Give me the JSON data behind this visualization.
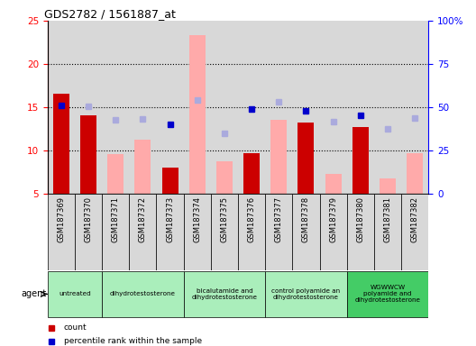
{
  "title": "GDS2782 / 1561887_at",
  "samples": [
    "GSM187369",
    "GSM187370",
    "GSM187371",
    "GSM187372",
    "GSM187373",
    "GSM187374",
    "GSM187375",
    "GSM187376",
    "GSM187377",
    "GSM187378",
    "GSM187379",
    "GSM187380",
    "GSM187381",
    "GSM187382"
  ],
  "count_values": [
    16.6,
    14.1,
    null,
    null,
    8.0,
    null,
    null,
    9.7,
    null,
    13.2,
    null,
    12.7,
    null,
    null
  ],
  "rank_values": [
    15.2,
    null,
    null,
    null,
    13.0,
    null,
    null,
    14.8,
    null,
    14.6,
    null,
    14.1,
    null,
    null
  ],
  "absent_value": [
    null,
    null,
    9.6,
    11.3,
    null,
    23.3,
    8.8,
    null,
    13.5,
    null,
    7.3,
    null,
    6.8,
    9.7
  ],
  "absent_rank": [
    null,
    15.1,
    13.5,
    13.6,
    null,
    15.8,
    12.0,
    null,
    15.6,
    null,
    13.3,
    null,
    12.5,
    13.8
  ],
  "agent_groups": [
    {
      "label": "untreated",
      "start": 0,
      "end": 1,
      "color": "#aaeebb"
    },
    {
      "label": "dihydrotestosterone",
      "start": 2,
      "end": 4,
      "color": "#aaeebb"
    },
    {
      "label": "bicalutamide and\ndihydrotestosterone",
      "start": 5,
      "end": 7,
      "color": "#aaeebb"
    },
    {
      "label": "control polyamide an\ndihydrotestosterone",
      "start": 8,
      "end": 10,
      "color": "#aaeebb"
    },
    {
      "label": "WGWWCW\npolyamide and\ndihydrotestosterone",
      "start": 11,
      "end": 13,
      "color": "#44cc66"
    }
  ],
  "ylim_left": [
    5,
    25
  ],
  "ylim_right": [
    0,
    100
  ],
  "yticks_left": [
    5,
    10,
    15,
    20,
    25
  ],
  "yticks_right": [
    0,
    25,
    50,
    75,
    100
  ],
  "color_count": "#cc0000",
  "color_rank": "#0000cc",
  "color_absent_value": "#ffaaaa",
  "color_absent_rank": "#aaaadd",
  "col_bg": "#d8d8d8",
  "chart_bg": "#ffffff",
  "gridline_levels": [
    10,
    15,
    20
  ]
}
